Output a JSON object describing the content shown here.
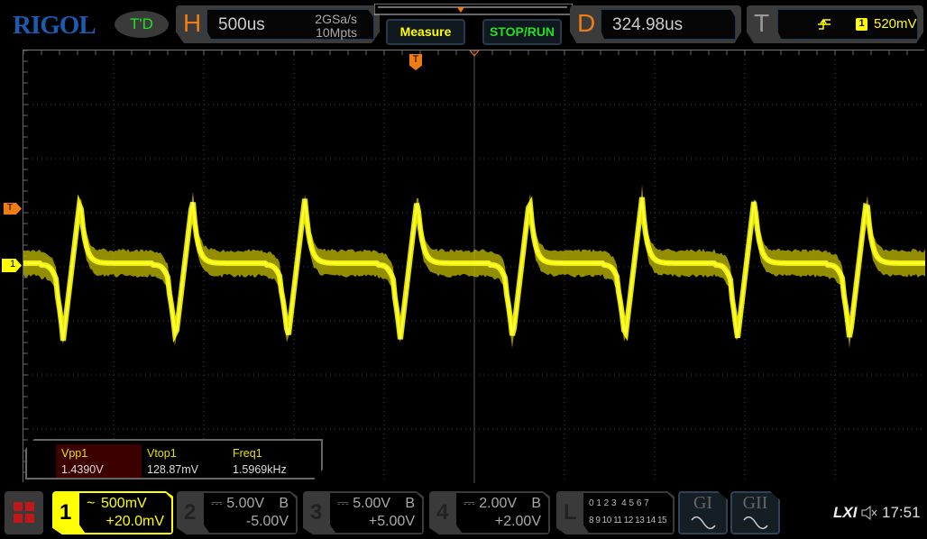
{
  "brand": "RIGOL",
  "run_status": "T'D",
  "horizontal": {
    "label": "H",
    "timebase": "500us",
    "sample_rate": "2GSa/s",
    "memory_depth": "10Mpts"
  },
  "buttons": {
    "measure": "Measure",
    "stop_run": "STOP/RUN"
  },
  "delay": {
    "label": "D",
    "value": "324.98us"
  },
  "trigger": {
    "label": "T",
    "slope": "rising-edge-icon",
    "source": "1",
    "level": "520mV",
    "mode": "A"
  },
  "markers": {
    "trigger_level": "T",
    "channel1": "1",
    "trigger_position": "T"
  },
  "measurements": [
    {
      "label": "Vpp1",
      "value": "1.4390V"
    },
    {
      "label": "Vtop1",
      "value": "128.87mV"
    },
    {
      "label": "Freq1",
      "value": "1.5969kHz"
    }
  ],
  "channels": [
    {
      "num": "1",
      "coupling": "~",
      "scale": "500mV",
      "offset": "+20.0mV",
      "bw": "",
      "color": "#ffff00"
    },
    {
      "num": "2",
      "coupling": "⎓",
      "scale": "5.00V",
      "offset": "-5.00V",
      "bw": "B"
    },
    {
      "num": "3",
      "coupling": "⎓",
      "scale": "5.00V",
      "offset": "+5.00V",
      "bw": "B"
    },
    {
      "num": "4",
      "coupling": "⎓",
      "scale": "2.00V",
      "offset": "+2.00V",
      "bw": "B"
    }
  ],
  "logic": {
    "label": "L",
    "row1": "0 1 2 3  4 5 6 7",
    "row2": "8 9 10 11 12 13 14 15"
  },
  "generators": [
    {
      "label": "GI"
    },
    {
      "label": "GII"
    }
  ],
  "status": {
    "lxi": "LXI",
    "sound": "speaker-muted-icon",
    "time": "17:51"
  },
  "colors": {
    "trace": "#ffff00",
    "accent": "#f07c14",
    "brand": "#1c5bb0",
    "run": "#22e022"
  }
}
